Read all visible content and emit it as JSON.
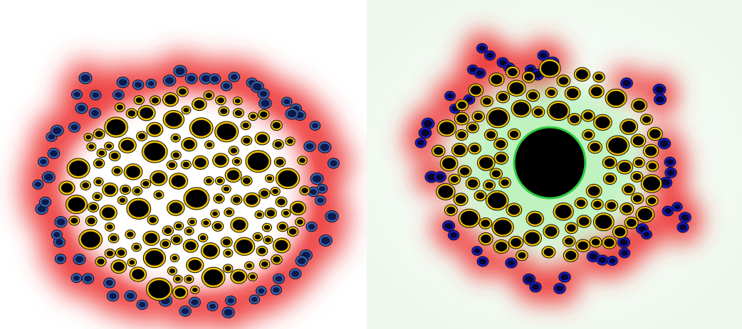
{
  "figure": {
    "panels": [
      {
        "id": "left",
        "halo_color": "#ee3b3b",
        "core_glow_color": "#ffffff",
        "inner_cell_fill": "#000000",
        "inner_cell_ring": "#f2c300",
        "outer_cell_fill": "#0b1a4a",
        "outer_cell_ring": "#3a63b8",
        "background": "#ffffff"
      },
      {
        "id": "right",
        "halo_color": "#ee3b3b",
        "core_glow_color": "#7ee87e",
        "background_tint": "#eef8ee",
        "central_body_fill": "#000000",
        "central_body_ring": "#2ecc40",
        "inner_cell_fill": "#000000",
        "inner_cell_ring": "#f2c300",
        "outer_cell_fill": "#060630",
        "outer_cell_ring": "#1a1acc"
      }
    ]
  }
}
